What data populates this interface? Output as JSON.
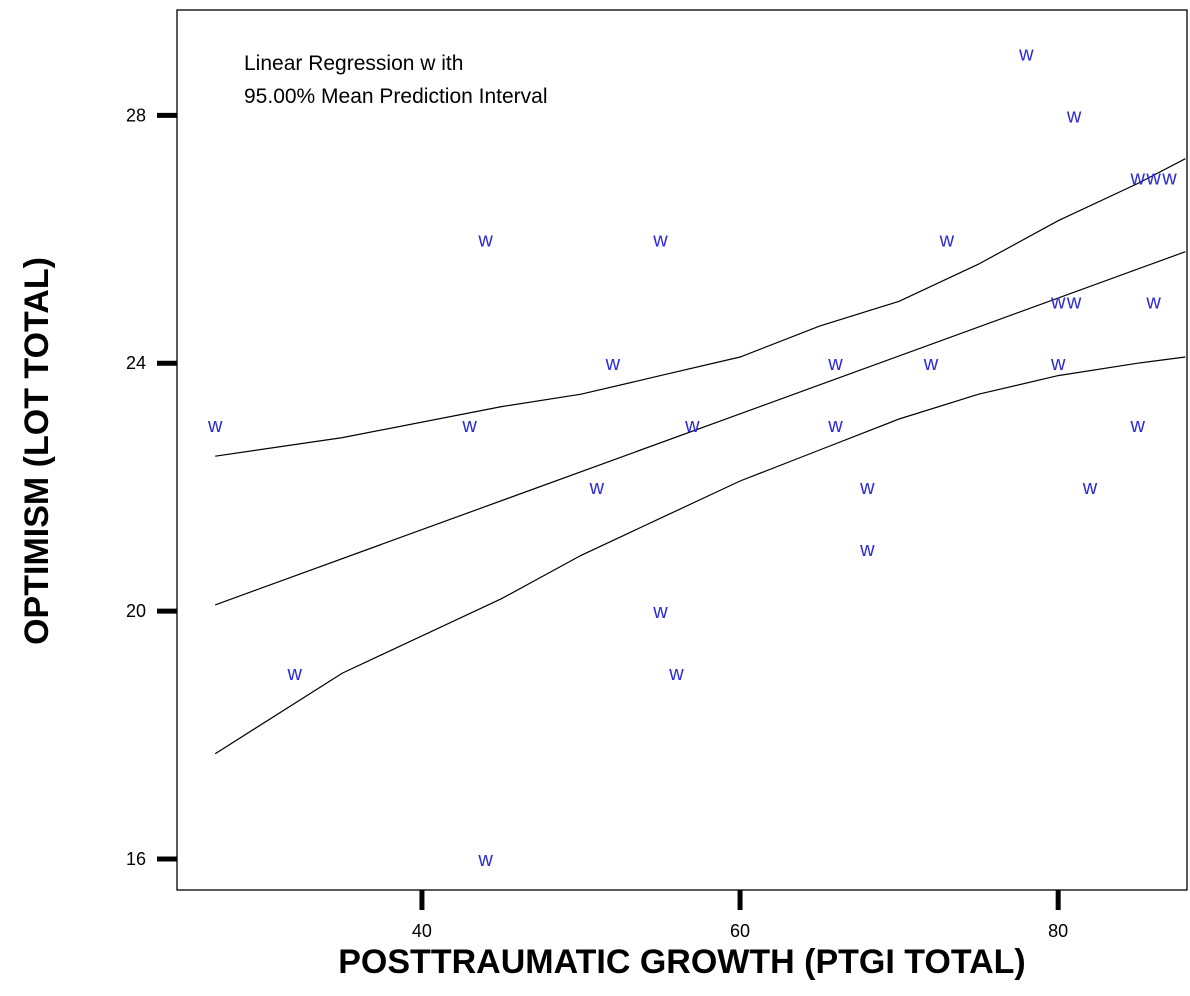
{
  "chart_data": {
    "type": "scatter",
    "title": "",
    "annotation_lines": [
      "Linear Regression w ith",
      "95.00% Mean Prediction Interval"
    ],
    "xlabel": "POSTTRAUMATIC GROWTH (PTGI TOTAL)",
    "ylabel": "OPTIMISM (LOT TOTAL)",
    "xlim": [
      24.6,
      88.1
    ],
    "ylim": [
      15.5,
      29.7
    ],
    "x_ticks": [
      40,
      60,
      80
    ],
    "y_ticks": [
      16,
      20,
      24,
      28
    ],
    "grid": false,
    "marker_symbol": "w",
    "marker_color": "#2b2bd8",
    "line_color": "#000000",
    "points": [
      {
        "x": 27,
        "y": 23
      },
      {
        "x": 32,
        "y": 19
      },
      {
        "x": 43,
        "y": 23
      },
      {
        "x": 44,
        "y": 26
      },
      {
        "x": 44,
        "y": 16
      },
      {
        "x": 51,
        "y": 22
      },
      {
        "x": 52,
        "y": 24
      },
      {
        "x": 55,
        "y": 26
      },
      {
        "x": 55,
        "y": 20
      },
      {
        "x": 56,
        "y": 19
      },
      {
        "x": 57,
        "y": 23
      },
      {
        "x": 66,
        "y": 24
      },
      {
        "x": 66,
        "y": 23
      },
      {
        "x": 68,
        "y": 22
      },
      {
        "x": 68,
        "y": 21
      },
      {
        "x": 72,
        "y": 24
      },
      {
        "x": 73,
        "y": 26
      },
      {
        "x": 78,
        "y": 29
      },
      {
        "x": 80,
        "y": 25
      },
      {
        "x": 80,
        "y": 24
      },
      {
        "x": 81,
        "y": 28
      },
      {
        "x": 81,
        "y": 25
      },
      {
        "x": 82,
        "y": 22
      },
      {
        "x": 85,
        "y": 27
      },
      {
        "x": 85,
        "y": 23
      },
      {
        "x": 86,
        "y": 27
      },
      {
        "x": 86,
        "y": 25
      },
      {
        "x": 87,
        "y": 27
      }
    ],
    "series": [
      {
        "role": "upper-interval",
        "x": [
          27,
          35,
          45,
          50,
          55,
          60,
          65,
          70,
          75,
          80,
          85,
          88
        ],
        "y": [
          22.5,
          22.8,
          23.3,
          23.5,
          23.8,
          24.1,
          24.6,
          25.0,
          25.6,
          26.3,
          26.9,
          27.3
        ]
      },
      {
        "role": "fit",
        "x": [
          27,
          88
        ],
        "y": [
          20.1,
          25.8
        ]
      },
      {
        "role": "lower-interval",
        "x": [
          27,
          35,
          45,
          50,
          55,
          60,
          65,
          70,
          75,
          80,
          85,
          88
        ],
        "y": [
          17.7,
          19.0,
          20.2,
          20.9,
          21.5,
          22.1,
          22.6,
          23.1,
          23.5,
          23.8,
          24.0,
          24.1
        ]
      }
    ]
  }
}
